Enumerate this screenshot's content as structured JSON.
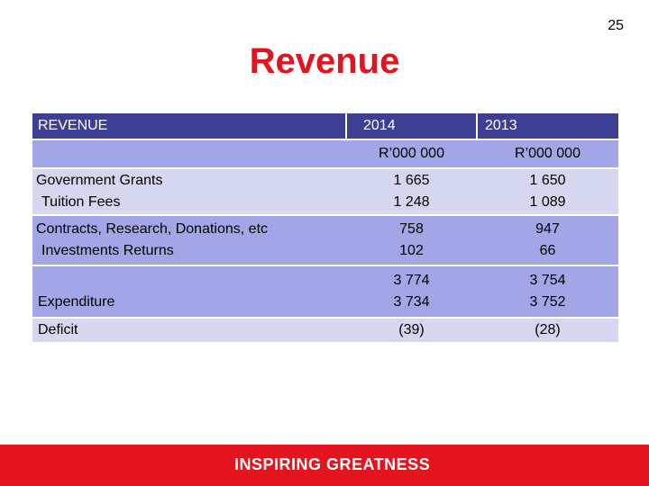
{
  "slide": {
    "page_number": "25",
    "title": "Revenue",
    "footer_text": "INSPIRING GREATNESS"
  },
  "colors": {
    "title_red": "#e3141e",
    "header_navy": "#3d3f94",
    "row_dark": "#a3a6e6",
    "row_light": "#d5d7ef"
  },
  "table": {
    "header": {
      "label": "REVENUE",
      "year1": "2014",
      "year2": "2013"
    },
    "units": {
      "year1": "R’000 000",
      "year2": "R’000 000"
    },
    "rows": [
      {
        "label_lines": [
          "Government Grants",
          "Tuition Fees"
        ],
        "y2014": [
          "1 665",
          "1 248"
        ],
        "y2013": [
          "1 650",
          "1 089"
        ]
      },
      {
        "label_lines": [
          "Contracts, Research, Donations, etc",
          "Investments Returns"
        ],
        "y2014": [
          "758",
          "102"
        ],
        "y2013": [
          "947",
          "66"
        ]
      },
      {
        "label_lines": [
          "",
          "Expenditure"
        ],
        "y2014": [
          "3 774",
          "3 734"
        ],
        "y2013": [
          "3 754",
          "3 752"
        ]
      },
      {
        "label_lines": [
          "Deficit"
        ],
        "y2014": [
          "(39)"
        ],
        "y2013": [
          "(28)"
        ]
      }
    ]
  }
}
